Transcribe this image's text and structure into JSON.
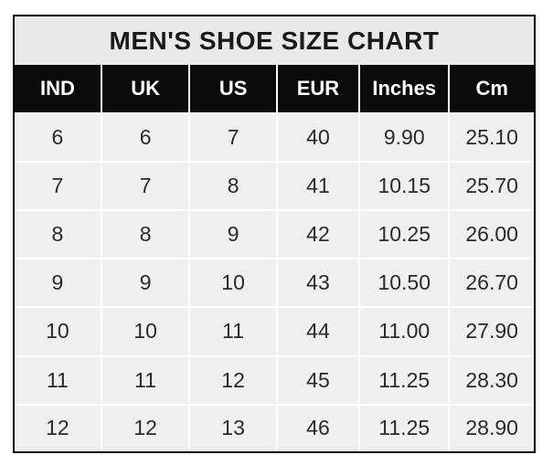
{
  "title": "MEN'S SHOE SIZE CHART",
  "colors": {
    "page_background": "#ffffff",
    "frame_border": "#000000",
    "title_bg": "#e9e9e9",
    "header_bg": "#0b0b0b",
    "header_text": "#ffffff",
    "cell_bg": "#efefef",
    "cell_text": "#2a2a2a",
    "gridline": "#ffffff"
  },
  "chart_data": {
    "type": "table",
    "title": "MEN'S SHOE SIZE CHART",
    "columns": [
      "IND",
      "UK",
      "US",
      "EUR",
      "Inches",
      "Cm"
    ],
    "rows": [
      [
        "6",
        "6",
        "7",
        "40",
        "9.90",
        "25.10"
      ],
      [
        "7",
        "7",
        "8",
        "41",
        "10.15",
        "25.70"
      ],
      [
        "8",
        "8",
        "9",
        "42",
        "10.25",
        "26.00"
      ],
      [
        "9",
        "9",
        "10",
        "43",
        "10.50",
        "26.70"
      ],
      [
        "10",
        "10",
        "11",
        "44",
        "11.00",
        "27.90"
      ],
      [
        "11",
        "11",
        "12",
        "45",
        "11.25",
        "28.30"
      ],
      [
        "12",
        "12",
        "13",
        "46",
        "11.25",
        "28.90"
      ]
    ]
  }
}
